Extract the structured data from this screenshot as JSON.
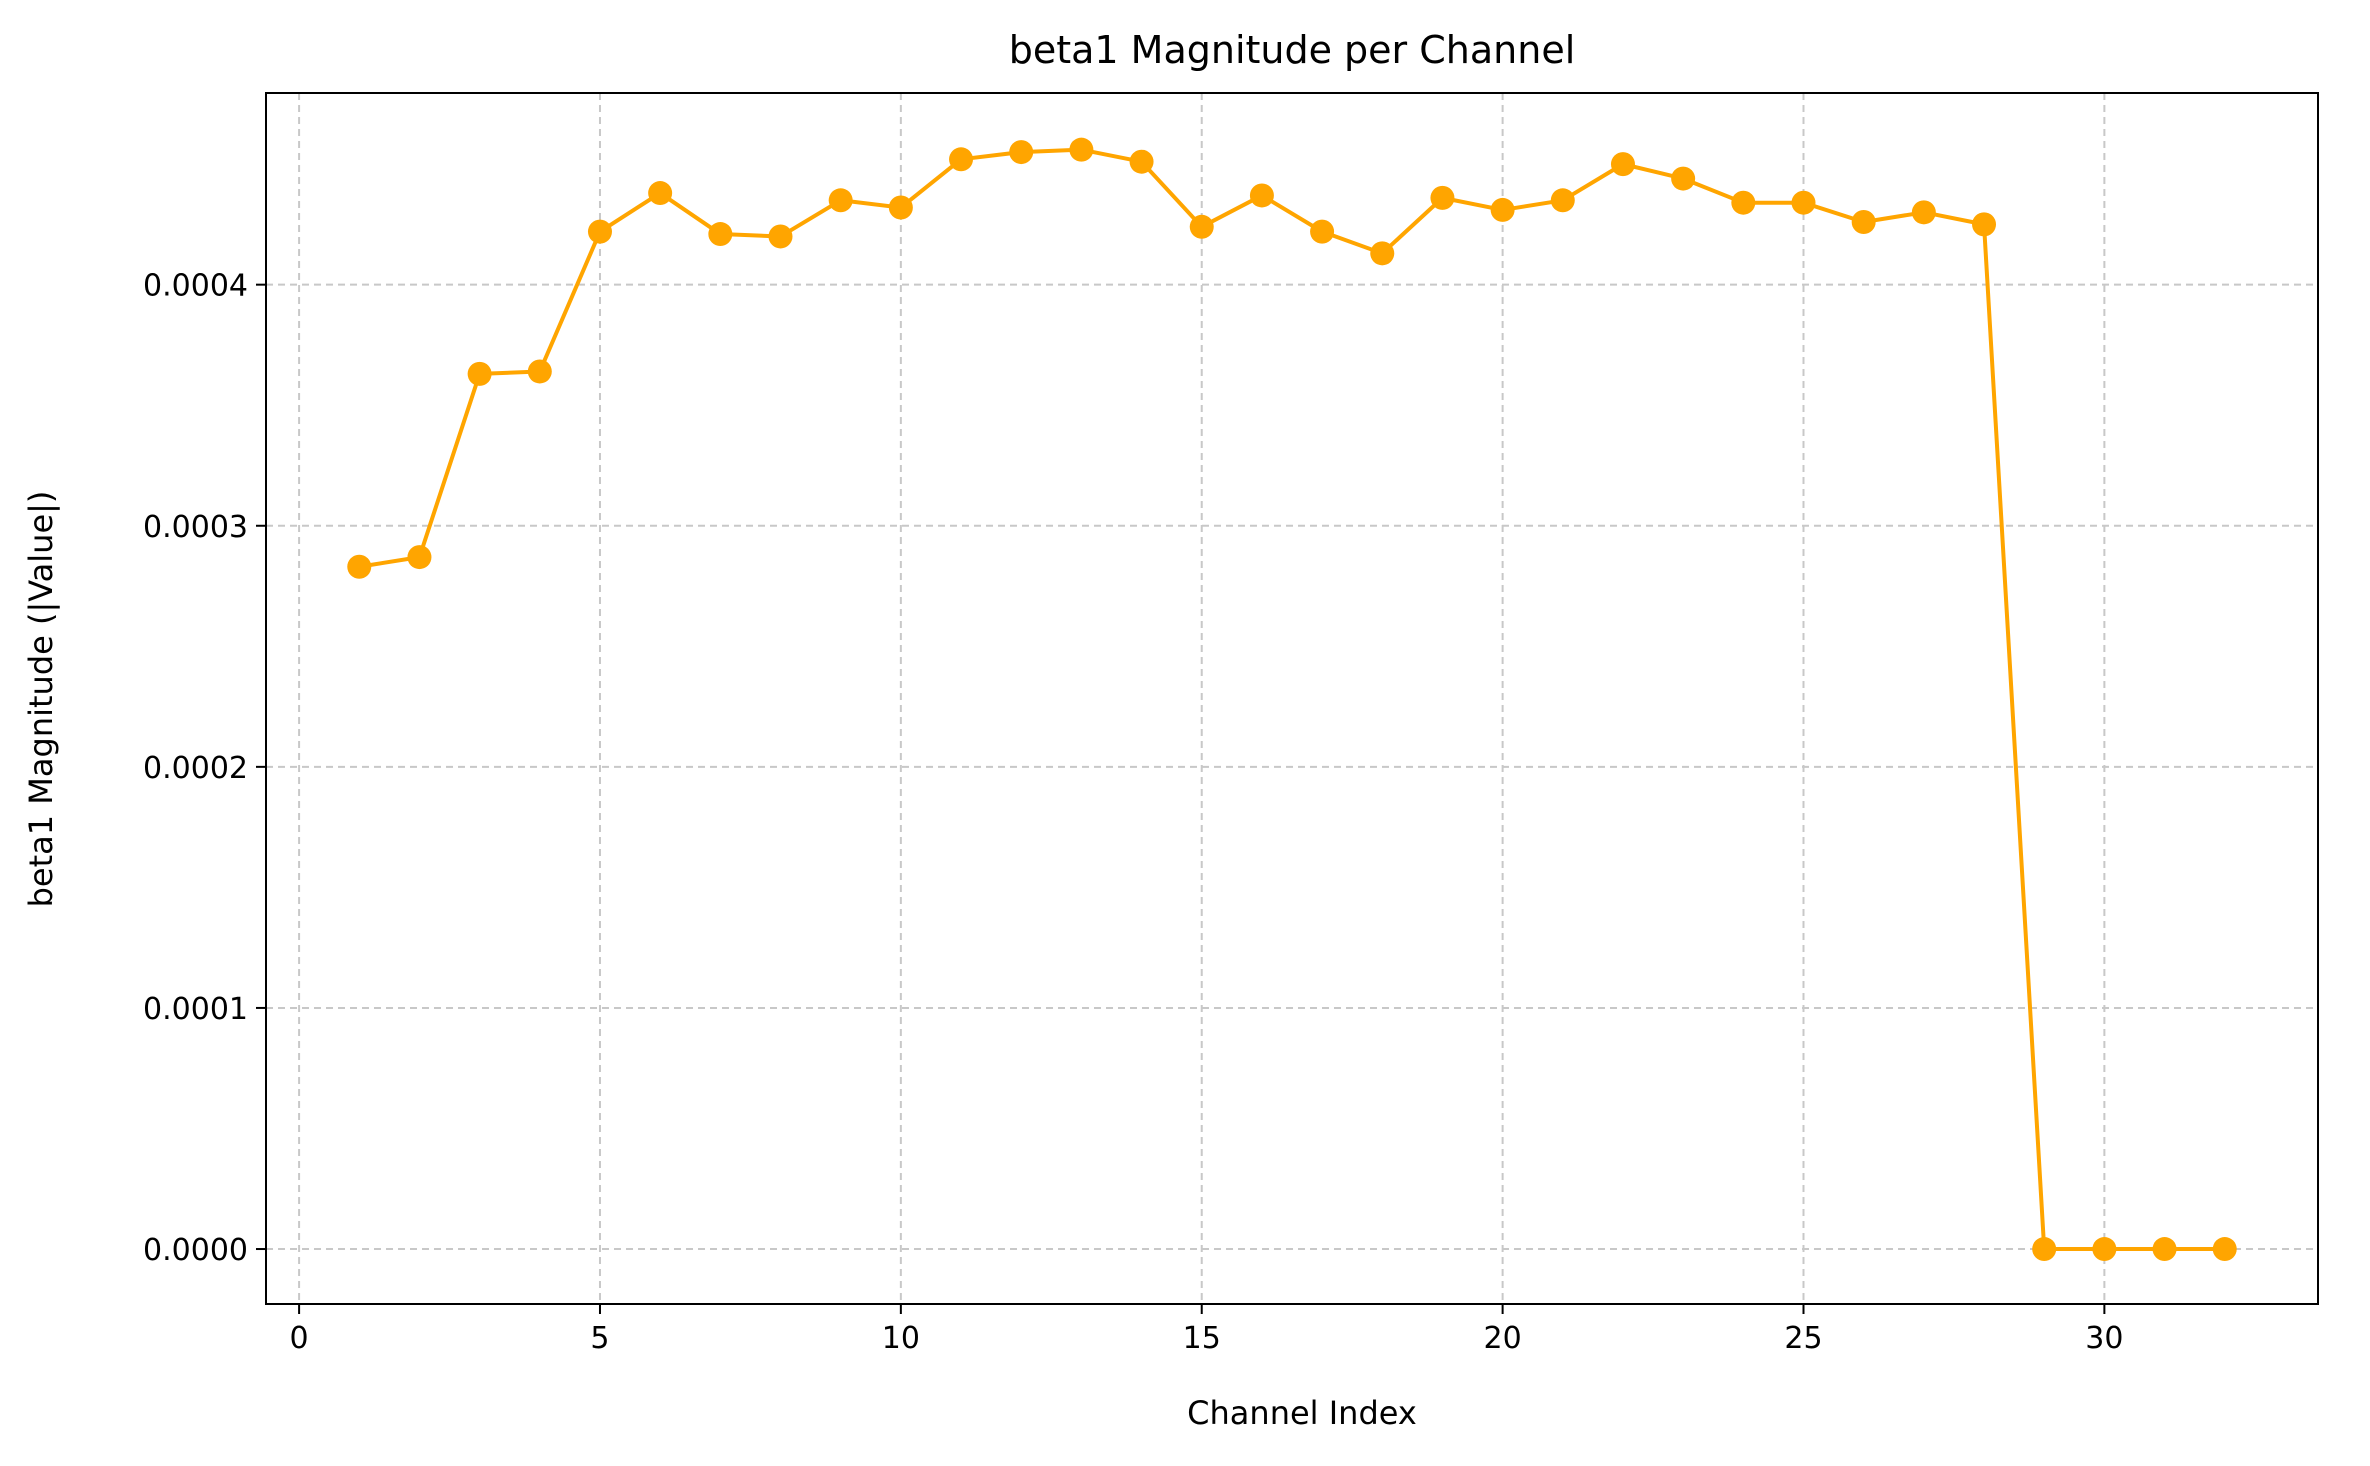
{
  "chart_data": {
    "type": "line",
    "title": "beta1 Magnitude per Channel",
    "xlabel": "Channel Index",
    "ylabel": "beta1 Magnitude (|Value|)",
    "xlim": [
      -0.55,
      33.55
    ],
    "ylim": [
      -2.28e-05,
      0.0004795
    ],
    "x_ticks": [
      0,
      5,
      10,
      15,
      20,
      25,
      30
    ],
    "x_tick_labels": [
      "0",
      "5",
      "10",
      "15",
      "20",
      "25",
      "30"
    ],
    "y_ticks": [
      0.0,
      0.0001,
      0.0002,
      0.0003,
      0.0004
    ],
    "y_tick_labels": [
      "0.0000",
      "0.0001",
      "0.0002",
      "0.0003",
      "0.0004"
    ],
    "grid": true,
    "legend": "none",
    "series": [
      {
        "color": "#FFA500",
        "marker": "circle",
        "x": [
          1,
          2,
          3,
          4,
          5,
          6,
          7,
          8,
          9,
          10,
          11,
          12,
          13,
          14,
          15,
          16,
          17,
          18,
          19,
          20,
          21,
          22,
          23,
          24,
          25,
          26,
          27,
          28,
          29,
          30,
          31,
          32
        ],
        "y": [
          0.000283,
          0.000287,
          0.000363,
          0.000364,
          0.000422,
          0.000438,
          0.000421,
          0.00042,
          0.000435,
          0.000432,
          0.000452,
          0.000455,
          0.000456,
          0.000451,
          0.000424,
          0.000437,
          0.000422,
          0.000413,
          0.000436,
          0.000431,
          0.000435,
          0.00045,
          0.000444,
          0.000434,
          0.000434,
          0.000426,
          0.00043,
          0.000425,
          0.0,
          0.0,
          0.0,
          0.0
        ]
      }
    ]
  }
}
